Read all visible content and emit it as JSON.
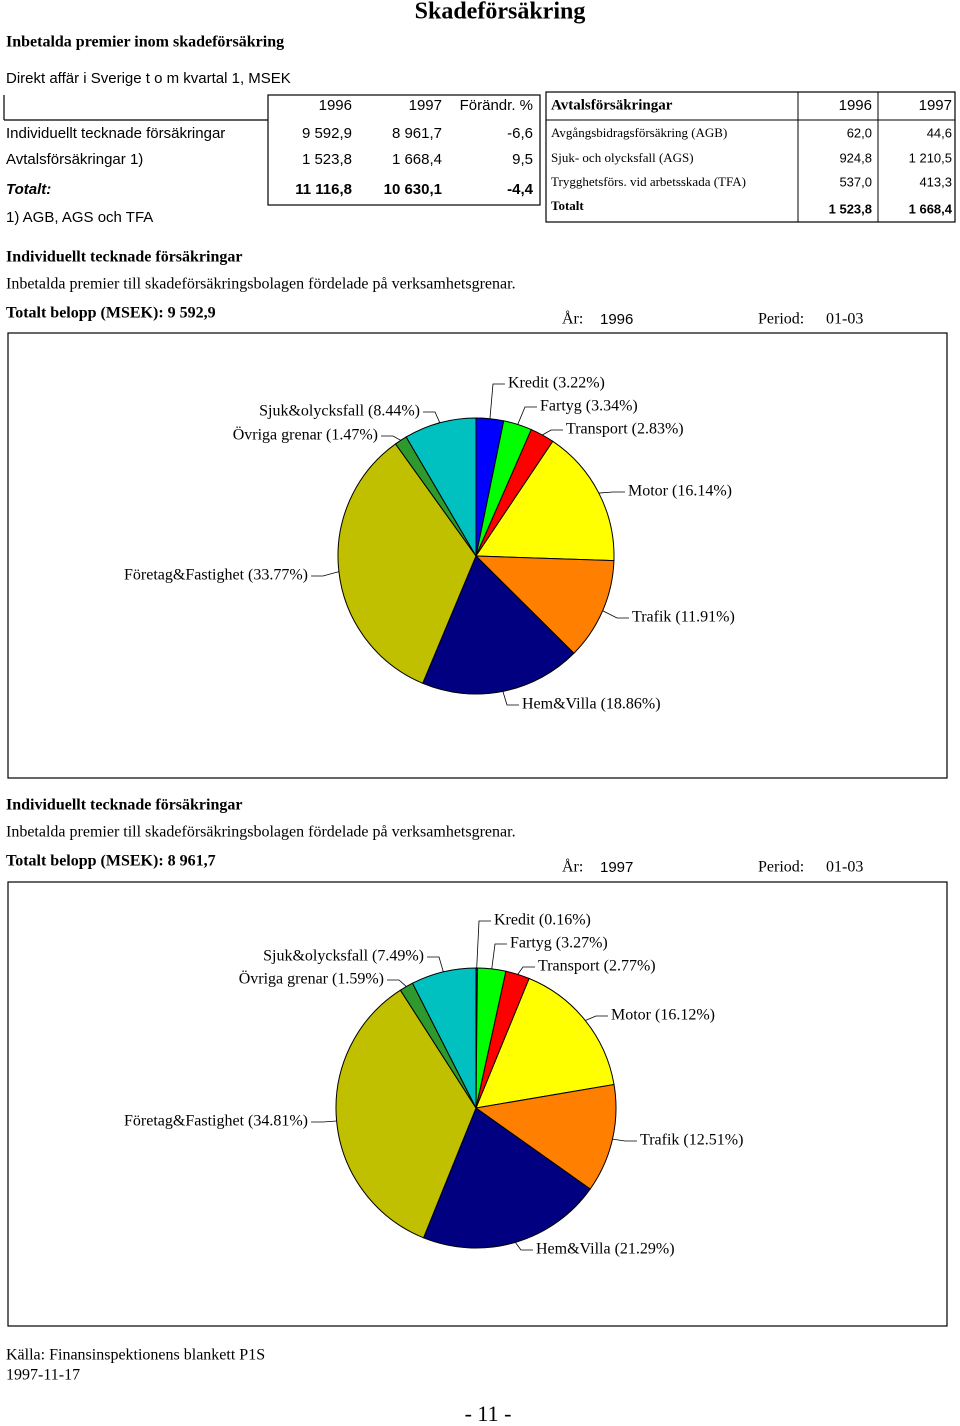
{
  "header": {
    "title": "Skadeförsäkring",
    "heading": "Inbetalda premier inom skadeförsäkring",
    "subheading": "Direkt affär i Sverige t o m kvartal 1, MSEK"
  },
  "table1": {
    "columns": [
      "1996",
      "1997",
      "Förändr. %"
    ],
    "rows": [
      [
        "Individuellt tecknade försäkringar",
        "9 592,9",
        "8 961,7",
        "-6,6"
      ],
      [
        "Avtalsförsäkringar 1)",
        "1 523,8",
        "1 668,4",
        "9,5"
      ],
      [
        "Totalt:",
        "11 116,8",
        "10 630,1",
        "-4,4"
      ]
    ],
    "note": "1) AGB, AGS och TFA"
  },
  "table2": {
    "columns": [
      "Avtalsförsäkringar",
      "1996",
      "1997"
    ],
    "rows": [
      [
        "Avgångsbidragsförsäkring (AGB)",
        "62,0",
        "44,6"
      ],
      [
        "Sjuk- och olycksfall (AGS)",
        "924,8",
        "1 210,5"
      ],
      [
        "Trygghetsförs. vid arbetsskada (TFA)",
        "537,0",
        "413,3"
      ],
      [
        "Totalt",
        "1 523,8",
        "1 668,4"
      ]
    ]
  },
  "chart_data": [
    {
      "type": "pie",
      "title": "Individuellt tecknade försäkringar",
      "subtitle": "Inbetalda premier till skadeförsäkringsbolagen fördelade på verksamhetsgrenar.",
      "total": "Totalt belopp (MSEK): 9 592,9",
      "year_label": "År:",
      "year": "1996",
      "period_label": "Period:",
      "period": "01-03",
      "values": [
        3.22,
        3.34,
        2.83,
        16.14,
        11.91,
        18.86,
        33.77,
        1.47,
        8.44
      ],
      "value_labels": [
        "Kredit (3.22%)",
        "Fartyg (3.34%)",
        "Transport (2.83%)",
        "Motor (16.14%)",
        "Trafik (11.91%)",
        "Hem&Villa (18.86%)",
        "Företag&Fastighet (33.77%)",
        "Övriga grenar (1.47%)",
        "Sjuk&olycksfall (8.44%)"
      ],
      "colors": [
        "#0000ff",
        "#00ff00",
        "#ff0000",
        "#ffff00",
        "#ff8000",
        "#000080",
        "#c0c000",
        "#2e9a2e",
        "#00c0c0"
      ]
    },
    {
      "type": "pie",
      "title": "Individuellt tecknade försäkringar",
      "subtitle": "Inbetalda premier till skadeförsäkringsbolagen fördelade på verksamhetsgrenar.",
      "total": "Totalt belopp (MSEK): 8 961,7",
      "year_label": "År:",
      "year": "1997",
      "period_label": "Period:",
      "period": "01-03",
      "values": [
        0.16,
        3.27,
        2.77,
        16.12,
        12.51,
        21.29,
        34.81,
        1.59,
        7.49
      ],
      "value_labels": [
        "Kredit (0.16%)",
        "Fartyg (3.27%)",
        "Transport (2.77%)",
        "Motor (16.12%)",
        "Trafik (12.51%)",
        "Hem&Villa (21.29%)",
        "Företag&Fastighet (34.81%)",
        "Övriga grenar (1.59%)",
        "Sjuk&olycksfall (7.49%)"
      ],
      "colors": [
        "#0000ff",
        "#00ff00",
        "#ff0000",
        "#ffff00",
        "#ff8000",
        "#000080",
        "#c0c000",
        "#2e9a2e",
        "#00c0c0"
      ]
    }
  ],
  "footer": {
    "source": "Källa: Finansinspektionens blankett P1S",
    "date": "1997-11-17",
    "page": "- 11 -"
  }
}
